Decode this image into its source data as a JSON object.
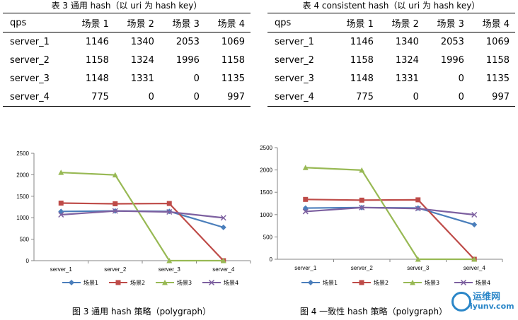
{
  "tables": [
    {
      "title": "表 3  通用 hash（以 uri 为 hash  key）",
      "headers": [
        "qps",
        "场景 1",
        "场景 2",
        "场景 3",
        "场景 4"
      ],
      "rows": [
        [
          "server_1",
          "1146",
          "1340",
          "2053",
          "1069"
        ],
        [
          "server_2",
          "1158",
          "1324",
          "1996",
          "1158"
        ],
        [
          "server_3",
          "1148",
          "1331",
          "0",
          "1135"
        ],
        [
          "server_4",
          "775",
          "0",
          "0",
          "997"
        ]
      ]
    },
    {
      "title": "表 4 consistent hash（以 uri 为 hash  key）",
      "headers": [
        "qps",
        "场景 1",
        "场景 2",
        "场景 3",
        "场景 4"
      ],
      "rows": [
        [
          "server_1",
          "1146",
          "1340",
          "2053",
          "1069"
        ],
        [
          "server_2",
          "1158",
          "1324",
          "1996",
          "1158"
        ],
        [
          "server_3",
          "1148",
          "1331",
          "0",
          "1135"
        ],
        [
          "server_4",
          "775",
          "0",
          "0",
          "997"
        ]
      ]
    }
  ],
  "chart_data": [
    {
      "type": "line",
      "title": "图 3  通用 hash 策略（polygraph）",
      "categories": [
        "server_1",
        "server_2",
        "server_3",
        "server_4"
      ],
      "ylim": [
        0,
        2500
      ],
      "yticks": [
        "0",
        "500",
        "1000",
        "1500",
        "2000",
        "2500"
      ],
      "grid": false,
      "legend": "bottom",
      "series": [
        {
          "name": "场景1",
          "values": [
            1146,
            1158,
            1148,
            775
          ],
          "color": "#4a7ebb",
          "marker": "diamond"
        },
        {
          "name": "场景2",
          "values": [
            1340,
            1324,
            1331,
            0
          ],
          "color": "#be4b48",
          "marker": "square"
        },
        {
          "name": "场景3",
          "values": [
            2053,
            1996,
            0,
            0
          ],
          "color": "#98b954",
          "marker": "triangle"
        },
        {
          "name": "场景4",
          "values": [
            1069,
            1158,
            1135,
            997
          ],
          "color": "#7d60a0",
          "marker": "x"
        }
      ]
    },
    {
      "type": "line",
      "title": "图 4  一致性 hash 策略（polygraph）",
      "categories": [
        "server_1",
        "server_2",
        "server_3",
        "server_4"
      ],
      "ylim": [
        0,
        2500
      ],
      "yticks": [
        "0",
        "500",
        "1000",
        "1500",
        "2000",
        "2500"
      ],
      "grid": false,
      "legend": "bottom",
      "series": [
        {
          "name": "场景1",
          "values": [
            1146,
            1158,
            1148,
            775
          ],
          "color": "#4a7ebb",
          "marker": "diamond"
        },
        {
          "name": "场景2",
          "values": [
            1340,
            1324,
            1331,
            0
          ],
          "color": "#be4b48",
          "marker": "square"
        },
        {
          "name": "场景3",
          "values": [
            2053,
            1996,
            0,
            0
          ],
          "color": "#98b954",
          "marker": "triangle"
        },
        {
          "name": "场景4",
          "values": [
            1069,
            1158,
            1135,
            997
          ],
          "color": "#7d60a0",
          "marker": "x"
        }
      ]
    }
  ],
  "watermark": {
    "name": "运维网",
    "url": "iyunv.com"
  }
}
